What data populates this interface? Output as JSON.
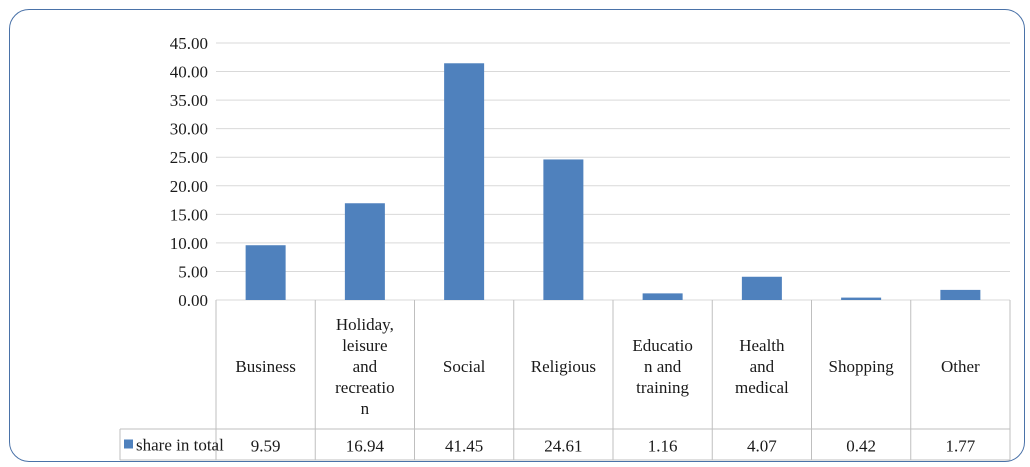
{
  "chart_data": {
    "type": "bar",
    "title": "",
    "xlabel": "",
    "ylabel": "",
    "ylim": [
      0,
      45
    ],
    "yticks": [
      "0.00",
      "5.00",
      "10.00",
      "15.00",
      "20.00",
      "25.00",
      "30.00",
      "35.00",
      "40.00",
      "45.00"
    ],
    "grid": true,
    "legend": "data-table-row",
    "categories": [
      [
        "Business"
      ],
      [
        "Holiday,",
        "leisure",
        "and",
        "recreatio",
        "n"
      ],
      [
        "Social"
      ],
      [
        "Religious"
      ],
      [
        "Educatio",
        "n and",
        "training"
      ],
      [
        "Health",
        "and",
        "medical"
      ],
      [
        "Shopping"
      ],
      [
        "Other"
      ]
    ],
    "series": [
      {
        "name": "share in total",
        "color": "#4f81bd",
        "values": [
          9.59,
          16.94,
          41.45,
          24.61,
          1.16,
          4.07,
          0.42,
          1.77
        ],
        "labels": [
          "9.59",
          "16.94",
          "41.45",
          "24.61",
          "1.16",
          "4.07",
          "0.42",
          "1.77"
        ]
      }
    ]
  }
}
